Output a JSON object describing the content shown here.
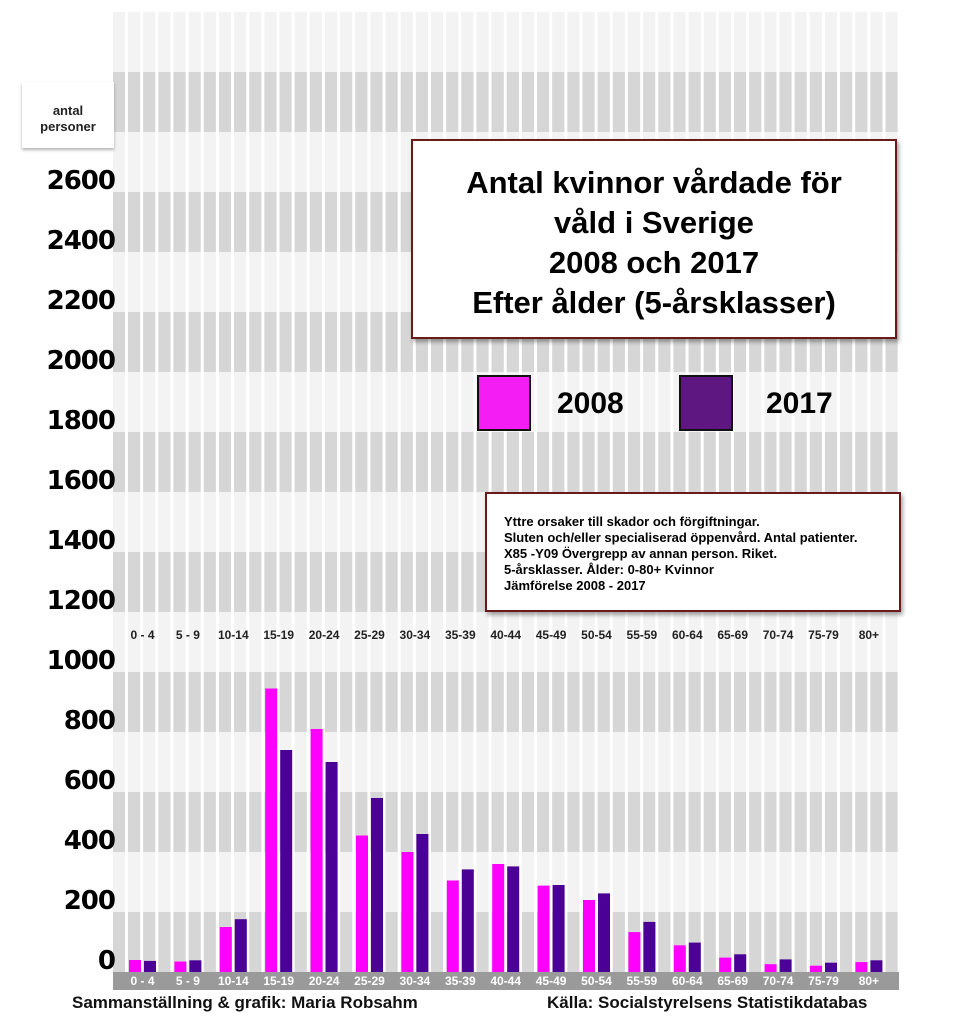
{
  "chart_data": {
    "type": "bar",
    "title": "Antal kvinnor vårdade för våld i Sverige 2008 och 2017 Efter ålder (5-årsklasser)",
    "title_lines": [
      "Antal kvinnor vårdade för",
      "våld i Sverige",
      "2008 och 2017",
      "Efter ålder (5-årsklasser)"
    ],
    "ylabel_lines": [
      "antal",
      "personer"
    ],
    "xlabel": "",
    "ylim": [
      0,
      3200
    ],
    "yticks": [
      0,
      200,
      400,
      600,
      800,
      1000,
      1200,
      1400,
      1600,
      1800,
      2000,
      2200,
      2400,
      2600
    ],
    "grid": "alternating horizontal bands",
    "legend_placement": "top-right",
    "categories": [
      "0 - 4",
      "5 - 9",
      "10-14",
      "15-19",
      "20-24",
      "25-29",
      "30-34",
      "35-39",
      "40-44",
      "45-49",
      "50-54",
      "55-59",
      "60-64",
      "65-69",
      "70-74",
      "75-79",
      "80+"
    ],
    "series": [
      {
        "name": "2008",
        "color": "#ff00ff",
        "values": [
          40,
          35,
          150,
          945,
          810,
          455,
          400,
          305,
          360,
          288,
          240,
          133,
          89,
          48,
          26,
          21,
          33
        ]
      },
      {
        "name": "2017",
        "color": "#4b0096",
        "values": [
          37,
          39,
          176,
          740,
          700,
          580,
          460,
          342,
          352,
          290,
          262,
          167,
          98,
          59,
          42,
          31,
          39
        ]
      }
    ],
    "legend_colors": {
      "2008": "#f41ef4",
      "2017": "#5e1680"
    },
    "note_lines": [
      "Yttre orsaker till skador och förgiftningar.",
      "Sluten och/eller specialiserad öppenvård. Antal patienter.",
      "X85 -Y09 Övergrepp av annan person. Riket.",
      "5-årsklasser. Ålder: 0-80+ Kvinnor",
      "Jämförelse 2008 - 2017"
    ]
  },
  "footer": {
    "credit": "Sammanställning & grafik: Maria Robsahm",
    "source": "Källa: Socialstyrelsens Statistikdatabas"
  }
}
